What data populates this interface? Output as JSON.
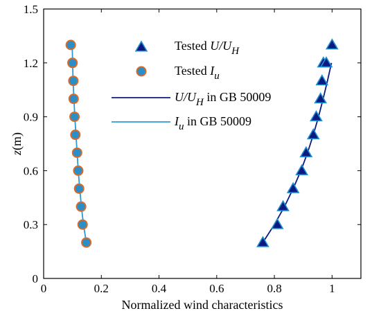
{
  "chart_data": {
    "type": "line",
    "xlabel": "Normalized wind characteristics",
    "ylabel": {
      "var": "z",
      "unit": "(m)"
    },
    "xlim": [
      0,
      1.1
    ],
    "ylim": [
      0,
      1.5
    ],
    "xticks": [
      0,
      0.2,
      0.4,
      0.6,
      0.8,
      1
    ],
    "xtick_labels": [
      "0",
      "0.2",
      "0.4",
      "0.6",
      "0.8",
      "1"
    ],
    "yticks": [
      0,
      0.3,
      0.6,
      0.9,
      1.2,
      1.5
    ],
    "ytick_labels": [
      "0",
      "0.3",
      "0.6",
      "0.9",
      "1.2",
      "1.5"
    ],
    "grid": false,
    "legend_position": "top-right",
    "series": [
      {
        "kind": "marker-triangle",
        "color": "#0b1a80",
        "edge_color": "#1e8fd0",
        "legend": {
          "prefix": "Tested ",
          "parts": [
            [
              "U/U",
              "it"
            ],
            [
              "H",
              "sub-it"
            ]
          ]
        },
        "x": [
          0.76,
          0.81,
          0.83,
          0.865,
          0.895,
          0.91,
          0.935,
          0.945,
          0.96,
          0.965,
          0.97,
          0.98,
          1.0
        ],
        "y": [
          0.2,
          0.3,
          0.4,
          0.5,
          0.6,
          0.7,
          0.8,
          0.9,
          1.0,
          1.1,
          1.2,
          1.2,
          1.3
        ]
      },
      {
        "kind": "marker-circle",
        "color": "#2a8fc8",
        "edge_color": "#d86a2a",
        "legend": {
          "prefix": "Tested ",
          "parts": [
            [
              "I",
              "it"
            ],
            [
              "u",
              "sub-it"
            ]
          ]
        },
        "x": [
          0.148,
          0.135,
          0.13,
          0.123,
          0.12,
          0.116,
          0.11,
          0.107,
          0.104,
          0.103,
          0.1,
          0.1,
          0.094
        ],
        "y": [
          0.2,
          0.3,
          0.4,
          0.5,
          0.6,
          0.7,
          0.8,
          0.9,
          1.0,
          1.1,
          1.2,
          1.2,
          1.3
        ]
      },
      {
        "kind": "line",
        "color": "#0b1a80",
        "legend": {
          "prefix": "",
          "parts": [
            [
              "U/U",
              "it"
            ],
            [
              "H",
              "sub-it"
            ],
            [
              " in GB 50009",
              "plain"
            ]
          ]
        },
        "x": [
          0.76,
          0.8,
          0.835,
          0.865,
          0.892,
          0.915,
          0.935,
          0.953,
          0.969,
          0.984,
          0.998
        ],
        "y": [
          0.2,
          0.3,
          0.4,
          0.5,
          0.6,
          0.7,
          0.8,
          0.9,
          1.0,
          1.1,
          1.2
        ]
      },
      {
        "kind": "line",
        "color": "#2a9ad6",
        "legend": {
          "prefix": "",
          "parts": [
            [
              "I",
              "it"
            ],
            [
              "u",
              "sub-it"
            ],
            [
              " in GB 50009",
              "plain"
            ]
          ]
        },
        "x": [
          0.148,
          0.138,
          0.131,
          0.125,
          0.12,
          0.116,
          0.112,
          0.108,
          0.105,
          0.102,
          0.099
        ],
        "y": [
          0.2,
          0.3,
          0.4,
          0.5,
          0.6,
          0.7,
          0.8,
          0.9,
          1.0,
          1.1,
          1.3
        ]
      }
    ]
  }
}
